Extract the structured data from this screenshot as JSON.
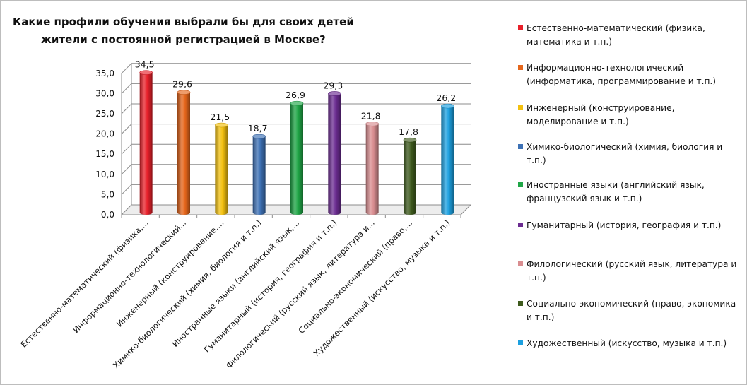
{
  "chart_data": {
    "type": "bar",
    "title_line1": "Какие профили обучения выбрали бы для своих детей",
    "title_line2": "жители с постоянной регистрацией в Москве?",
    "ylim": [
      0,
      35
    ],
    "yticks": [
      "0,0",
      "5,0",
      "10,0",
      "15,0",
      "20,0",
      "25,0",
      "30,0",
      "35,0"
    ],
    "grid": true,
    "legend_position": "right",
    "categories": [
      "Естественно-математический (физика,...",
      "Информационно-технологический...",
      "Инженерный (конструирование,...",
      "Химико-биологический (химия, биология и т.п.)",
      "Иностранные языки (английский язык,...",
      "Гуманитарный (история, география и т.п.)",
      "Филологический (русский язык, литература и...",
      "Социально-экономический (право,...",
      "Художественный (искусство, музыка и т.п.)"
    ],
    "values": [
      34.5,
      29.6,
      21.5,
      18.7,
      26.9,
      29.3,
      21.8,
      17.8,
      26.2
    ],
    "value_labels": [
      "34,5",
      "29,6",
      "21,5",
      "18,7",
      "26,9",
      "29,3",
      "21,8",
      "17,8",
      "26,2"
    ],
    "colors": [
      "#e8202a",
      "#e5661b",
      "#f3c00e",
      "#3d71b5",
      "#1fa646",
      "#6b2c91",
      "#d98d90",
      "#3e5a1d",
      "#1ca0e0"
    ],
    "legend": [
      "Естественно-математический (физика, математика и т.п.)",
      "Информационно-технологический (информатика, программирование и т.п.)",
      "Инженерный (конструирование, моделирование и т.п.)",
      "Химико-биологический (химия, биология и т.п.)",
      "Иностранные языки (английский язык, французский язык и т.п.)",
      "Гуманитарный (история, география и т.п.)",
      "Филологический (русский язык, литература и т.п.)",
      "Социально-экономический (право, экономика и т.п.)",
      "Художественный (искусство, музыка и т.п.)"
    ]
  }
}
